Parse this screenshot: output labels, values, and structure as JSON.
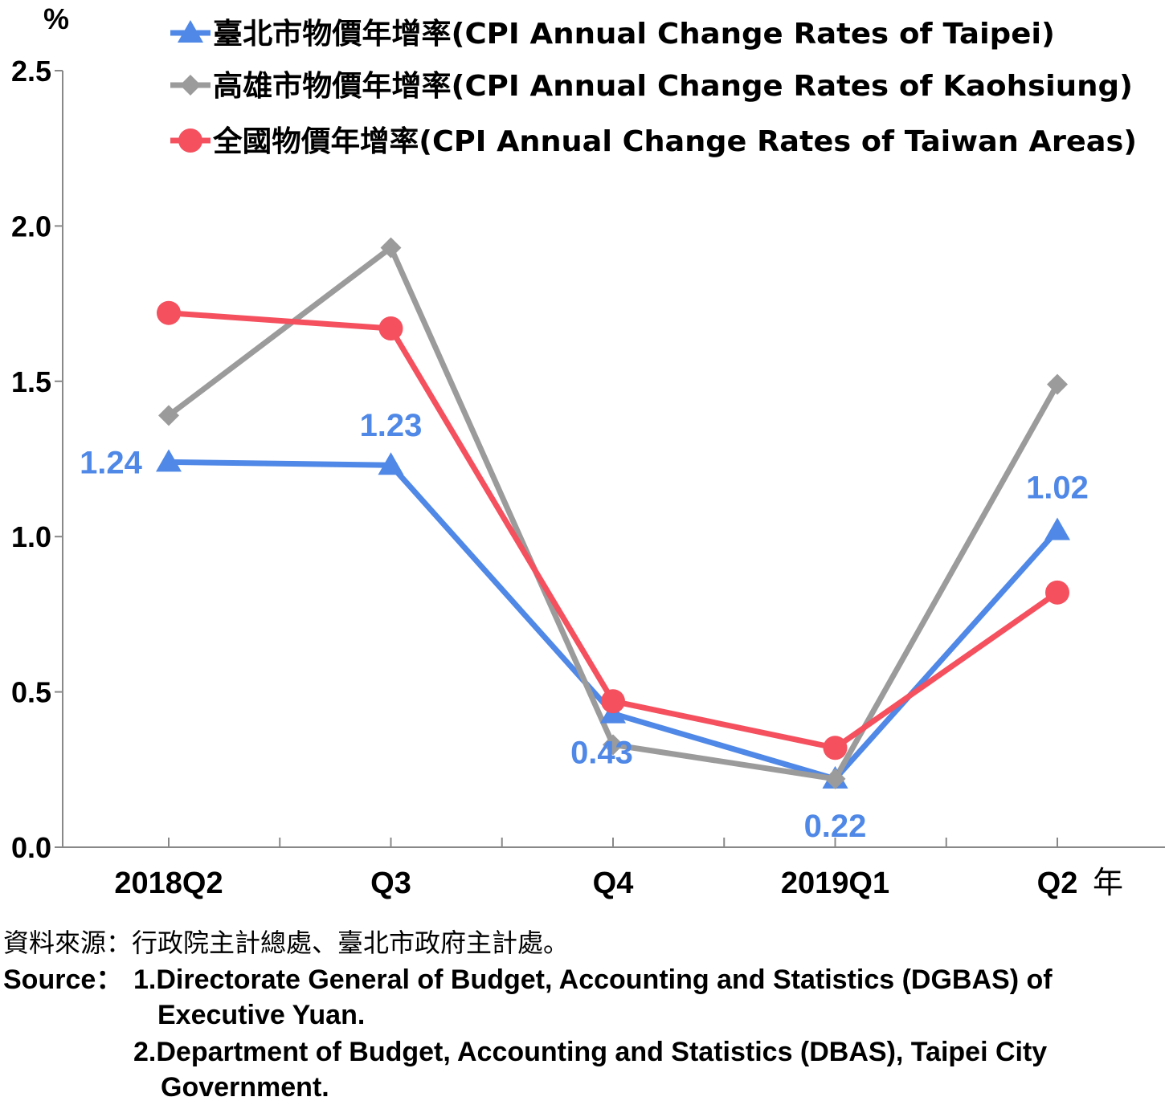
{
  "chart_data": {
    "type": "line",
    "ylabel": "%",
    "xunit": "年",
    "categories": [
      "2018Q2",
      "Q3",
      "Q4",
      "2019Q1",
      "Q2"
    ],
    "ylim": [
      0,
      2.5
    ],
    "yticks": [
      "0.0",
      "0.5",
      "1.0",
      "1.5",
      "2.0",
      "2.5"
    ],
    "grid": false,
    "legend_position": "top",
    "series": [
      {
        "name": "臺北市物價年增率(CPI Annual Change Rates of Taipei)",
        "values": [
          1.24,
          1.23,
          0.43,
          0.22,
          1.02
        ],
        "labels": [
          "1.24",
          "1.23",
          "0.43",
          "0.22",
          "1.02"
        ],
        "color": "#4f88e6",
        "marker": "triangle"
      },
      {
        "name": "高雄市物價年增率(CPI Annual Change Rates of Kaohsiung)",
        "values": [
          1.39,
          1.93,
          0.33,
          0.22,
          1.49
        ],
        "color": "#9b9b9b",
        "marker": "diamond"
      },
      {
        "name": "全國物價年增率(CPI Annual Change Rates of Taiwan Areas)",
        "values": [
          1.72,
          1.67,
          0.47,
          0.32,
          0.82
        ],
        "color": "#f4505e",
        "marker": "circle"
      }
    ]
  },
  "source": {
    "cn": "資料來源：行政院主計總處、臺北市政府主計處。",
    "label": "Source：",
    "line1": "1.Directorate General of Budget, Accounting and Statistics (DGBAS) of",
    "line1b": "Executive Yuan.",
    "line2": "2.Department of Budget, Accounting and Statistics (DBAS), Taipei City",
    "line2b": "Government."
  }
}
